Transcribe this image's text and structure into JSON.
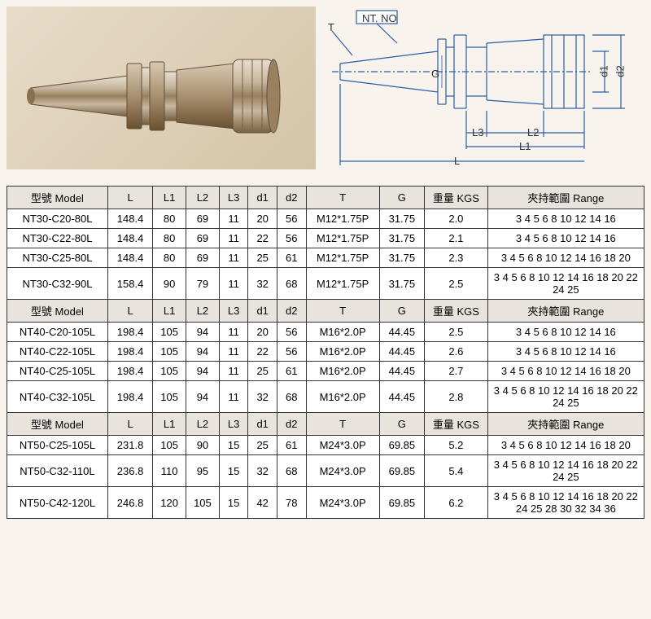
{
  "diagram": {
    "nt_no_label": "NT. NO",
    "t_label": "T",
    "g_label": "G",
    "d1_label": "d1",
    "d2_label": "d2",
    "l_label": "L",
    "l1_label": "L1",
    "l2_label": "L2",
    "l3_label": "L3",
    "line_color": "#2a5ca8",
    "text_color": "#333333"
  },
  "headers": {
    "model": "型號 Model",
    "l": "L",
    "l1": "L1",
    "l2": "L2",
    "l3": "L3",
    "d1": "d1",
    "d2": "d2",
    "t": "T",
    "g": "G",
    "kgs": "重量 KGS",
    "range": "夾持範圍 Range"
  },
  "sections": [
    {
      "rows": [
        {
          "model": "NT30-C20-80L",
          "l": "148.4",
          "l1": "80",
          "l2": "69",
          "l3": "11",
          "d1": "20",
          "d2": "56",
          "t": "M12*1.75P",
          "g": "31.75",
          "kgs": "2.0",
          "range": "3 4 5 6 8 10 12 14 16"
        },
        {
          "model": "NT30-C22-80L",
          "l": "148.4",
          "l1": "80",
          "l2": "69",
          "l3": "11",
          "d1": "22",
          "d2": "56",
          "t": "M12*1.75P",
          "g": "31.75",
          "kgs": "2.1",
          "range": "3 4 5 6 8 10 12 14 16"
        },
        {
          "model": "NT30-C25-80L",
          "l": "148.4",
          "l1": "80",
          "l2": "69",
          "l3": "11",
          "d1": "25",
          "d2": "61",
          "t": "M12*1.75P",
          "g": "31.75",
          "kgs": "2.3",
          "range": "3 4 5 6 8 10 12 14 16 18 20"
        },
        {
          "model": "NT30-C32-90L",
          "l": "158.4",
          "l1": "90",
          "l2": "79",
          "l3": "11",
          "d1": "32",
          "d2": "68",
          "t": "M12*1.75P",
          "g": "31.75",
          "kgs": "2.5",
          "range": "3 4 5 6 8 10 12 14 16 18 20 22 24 25"
        }
      ]
    },
    {
      "rows": [
        {
          "model": "NT40-C20-105L",
          "l": "198.4",
          "l1": "105",
          "l2": "94",
          "l3": "11",
          "d1": "20",
          "d2": "56",
          "t": "M16*2.0P",
          "g": "44.45",
          "kgs": "2.5",
          "range": "3 4 5 6 8 10 12 14 16"
        },
        {
          "model": "NT40-C22-105L",
          "l": "198.4",
          "l1": "105",
          "l2": "94",
          "l3": "11",
          "d1": "22",
          "d2": "56",
          "t": "M16*2.0P",
          "g": "44.45",
          "kgs": "2.6",
          "range": "3 4 5 6 8 10 12 14 16"
        },
        {
          "model": "NT40-C25-105L",
          "l": "198.4",
          "l1": "105",
          "l2": "94",
          "l3": "11",
          "d1": "25",
          "d2": "61",
          "t": "M16*2.0P",
          "g": "44.45",
          "kgs": "2.7",
          "range": "3 4 5 6 8 10 12 14 16 18 20"
        },
        {
          "model": "NT40-C32-105L",
          "l": "198.4",
          "l1": "105",
          "l2": "94",
          "l3": "11",
          "d1": "32",
          "d2": "68",
          "t": "M16*2.0P",
          "g": "44.45",
          "kgs": "2.8",
          "range": "3 4 5 6 8 10 12 14 16 18 20 22 24 25"
        }
      ]
    },
    {
      "rows": [
        {
          "model": "NT50-C25-105L",
          "l": "231.8",
          "l1": "105",
          "l2": "90",
          "l3": "15",
          "d1": "25",
          "d2": "61",
          "t": "M24*3.0P",
          "g": "69.85",
          "kgs": "5.2",
          "range": "3 4 5 6 8 10 12 14 16 18 20"
        },
        {
          "model": "NT50-C32-110L",
          "l": "236.8",
          "l1": "110",
          "l2": "95",
          "l3": "15",
          "d1": "32",
          "d2": "68",
          "t": "M24*3.0P",
          "g": "69.85",
          "kgs": "5.4",
          "range": "3 4 5 6 8 10 12 14 16 18 20 22 24 25"
        },
        {
          "model": "NT50-C42-120L",
          "l": "246.8",
          "l1": "120",
          "l2": "105",
          "l3": "15",
          "d1": "42",
          "d2": "78",
          "t": "M24*3.0P",
          "g": "69.85",
          "kgs": "6.2",
          "range": "3 4 5 6 8 10 12 14 16 18 20 22 24 25 28 30 32 34 36"
        }
      ]
    }
  ]
}
